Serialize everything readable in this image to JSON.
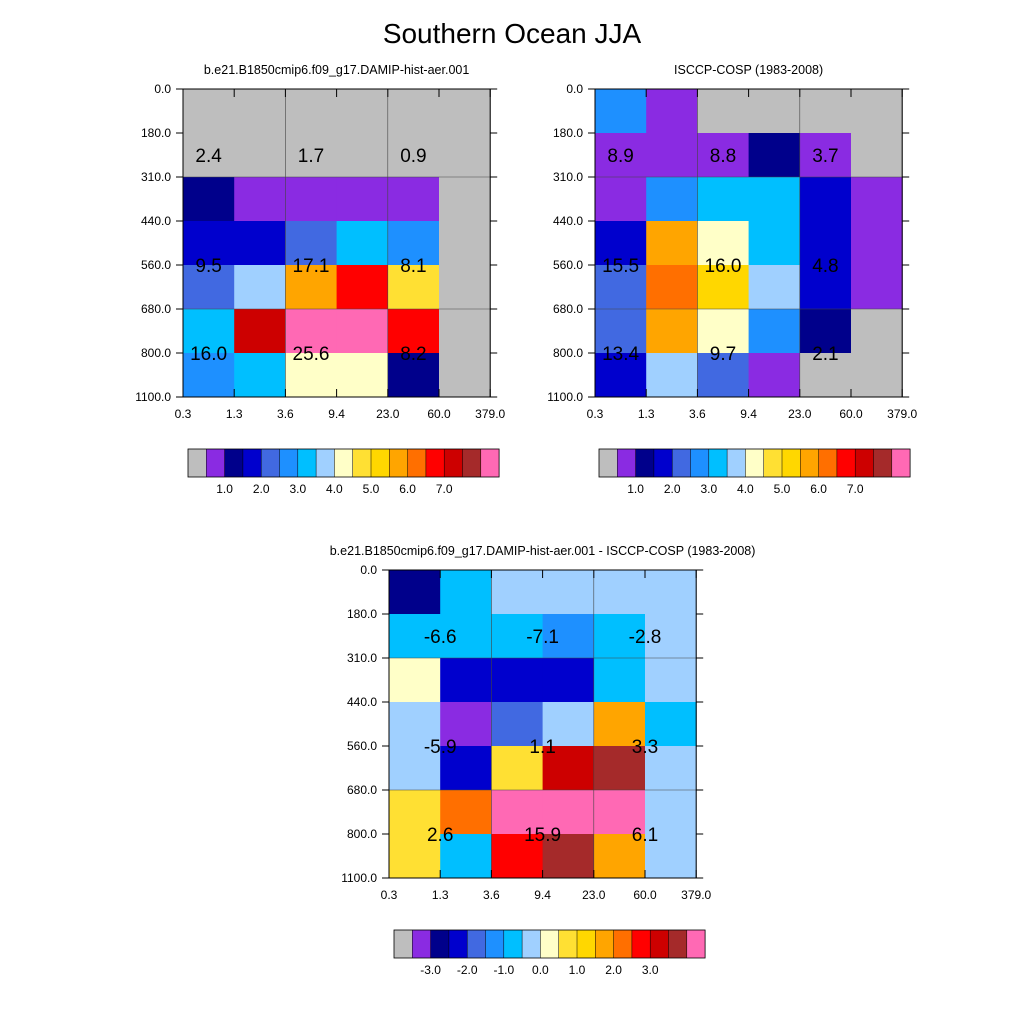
{
  "title": "Southern Ocean JJA",
  "colors": {
    "missing": "#bebebe",
    "palette": [
      "#bebebe",
      "#8a2be2",
      "#00008b",
      "#0000cd",
      "#4169e1",
      "#1e90ff",
      "#00bfff",
      "#a0d0ff",
      "#ffffc8",
      "#ffe033",
      "#ffd700",
      "#ffa500",
      "#ff6f00",
      "#ff0000",
      "#cd0000",
      "#a52a2a",
      "#ff69b4"
    ]
  },
  "chart_data": [
    {
      "type": "heatmap",
      "title": "b.e21.B1850cmip6.f09_g17.DAMIP-hist-aer.001",
      "x_ticks": [
        "0.3",
        "1.3",
        "3.6",
        "9.4",
        "23.0",
        "60.0",
        "379.0"
      ],
      "y_ticks": [
        "0.0",
        "180.0",
        "310.0",
        "440.0",
        "560.0",
        "680.0",
        "800.0",
        "1100.0"
      ],
      "cell_color_index": [
        [
          0,
          0,
          0,
          0,
          0,
          0
        ],
        [
          0,
          0,
          0,
          0,
          0,
          0
        ],
        [
          2,
          1,
          1,
          1,
          1,
          0
        ],
        [
          3,
          3,
          4,
          6,
          5,
          0
        ],
        [
          4,
          7,
          11,
          13,
          9,
          0
        ],
        [
          6,
          14,
          16,
          16,
          13,
          0
        ],
        [
          5,
          6,
          8,
          8,
          2,
          0
        ]
      ],
      "annotations": [
        {
          "value": "2.4",
          "col": 0.5,
          "row": 1.5
        },
        {
          "value": "1.7",
          "col": 2.5,
          "row": 1.5
        },
        {
          "value": "0.9",
          "col": 4.5,
          "row": 1.5
        },
        {
          "value": "9.5",
          "col": 0.5,
          "row": 4.0
        },
        {
          "value": "17.1",
          "col": 2.5,
          "row": 4.0
        },
        {
          "value": "8.1",
          "col": 4.5,
          "row": 4.0
        },
        {
          "value": "16.0",
          "col": 0.5,
          "row": 6.0
        },
        {
          "value": "25.6",
          "col": 2.5,
          "row": 6.0
        },
        {
          "value": "8.2",
          "col": 4.5,
          "row": 6.0
        }
      ],
      "colorbar_labels": [
        "1.0",
        "2.0",
        "3.0",
        "4.0",
        "5.0",
        "6.0",
        "7.0"
      ]
    },
    {
      "type": "heatmap",
      "title": "ISCCP-COSP (1983-2008)",
      "x_ticks": [
        "0.3",
        "1.3",
        "3.6",
        "9.4",
        "23.0",
        "60.0",
        "379.0"
      ],
      "y_ticks": [
        "0.0",
        "180.0",
        "310.0",
        "440.0",
        "560.0",
        "680.0",
        "800.0",
        "1100.0"
      ],
      "cell_color_index": [
        [
          5,
          1,
          0,
          0,
          0,
          0
        ],
        [
          1,
          1,
          1,
          2,
          1,
          0
        ],
        [
          1,
          5,
          6,
          6,
          3,
          1
        ],
        [
          3,
          11,
          8,
          6,
          3,
          1
        ],
        [
          4,
          12,
          10,
          7,
          3,
          1
        ],
        [
          4,
          11,
          8,
          5,
          2,
          0
        ],
        [
          3,
          7,
          4,
          1,
          0,
          0
        ]
      ],
      "annotations": [
        {
          "value": "8.9",
          "col": 0.5,
          "row": 1.5
        },
        {
          "value": "8.8",
          "col": 2.5,
          "row": 1.5
        },
        {
          "value": "3.7",
          "col": 4.5,
          "row": 1.5
        },
        {
          "value": "15.5",
          "col": 0.5,
          "row": 4.0
        },
        {
          "value": "16.0",
          "col": 2.5,
          "row": 4.0
        },
        {
          "value": "4.8",
          "col": 4.5,
          "row": 4.0
        },
        {
          "value": "13.4",
          "col": 0.5,
          "row": 6.0
        },
        {
          "value": "9.7",
          "col": 2.5,
          "row": 6.0
        },
        {
          "value": "2.1",
          "col": 4.5,
          "row": 6.0
        }
      ],
      "colorbar_labels": [
        "1.0",
        "2.0",
        "3.0",
        "4.0",
        "5.0",
        "6.0",
        "7.0"
      ]
    },
    {
      "type": "heatmap",
      "title": "b.e21.B1850cmip6.f09_g17.DAMIP-hist-aer.001 - ISCCP-COSP (1983-2008)",
      "x_ticks": [
        "0.3",
        "1.3",
        "3.6",
        "9.4",
        "23.0",
        "60.0",
        "379.0"
      ],
      "y_ticks": [
        "0.0",
        "180.0",
        "310.0",
        "440.0",
        "560.0",
        "680.0",
        "800.0",
        "1100.0"
      ],
      "cell_color_index": [
        [
          2,
          6,
          7,
          7,
          7,
          7
        ],
        [
          6,
          6,
          6,
          5,
          6,
          7
        ],
        [
          8,
          3,
          3,
          3,
          6,
          7
        ],
        [
          7,
          1,
          4,
          7,
          11,
          6
        ],
        [
          7,
          3,
          9,
          14,
          15,
          7
        ],
        [
          9,
          12,
          16,
          16,
          16,
          7
        ],
        [
          9,
          6,
          13,
          15,
          11,
          7
        ]
      ],
      "annotations": [
        {
          "value": "-6.6",
          "col": 1.0,
          "row": 1.5
        },
        {
          "value": "-7.1",
          "col": 3.0,
          "row": 1.5
        },
        {
          "value": "-2.8",
          "col": 5.0,
          "row": 1.5
        },
        {
          "value": "-5.9",
          "col": 1.0,
          "row": 4.0
        },
        {
          "value": "1.1",
          "col": 3.0,
          "row": 4.0
        },
        {
          "value": "3.3",
          "col": 5.0,
          "row": 4.0
        },
        {
          "value": "2.6",
          "col": 1.0,
          "row": 6.0
        },
        {
          "value": "15.9",
          "col": 3.0,
          "row": 6.0
        },
        {
          "value": "6.1",
          "col": 5.0,
          "row": 6.0
        }
      ],
      "colorbar_labels": [
        "-3.0",
        "-2.0",
        "-1.0",
        "0.0",
        "1.0",
        "2.0",
        "3.0"
      ]
    }
  ]
}
